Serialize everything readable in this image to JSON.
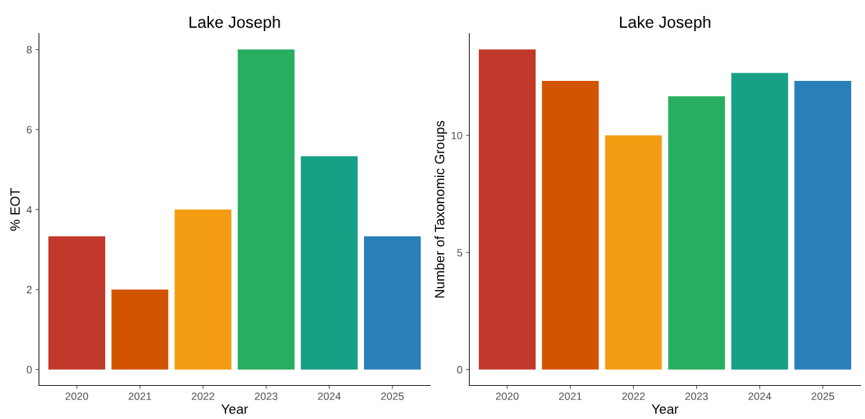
{
  "chart_data": [
    {
      "type": "bar",
      "title": "Lake Joseph",
      "xlabel": "Year",
      "ylabel": "% EOT",
      "categories": [
        "2020",
        "2021",
        "2022",
        "2023",
        "2024",
        "2025"
      ],
      "values": [
        3.33,
        2.0,
        4.0,
        8.0,
        5.33,
        3.33
      ],
      "colors": [
        "#c0392b",
        "#d35400",
        "#f39c12",
        "#27ae60",
        "#16a085",
        "#2980b9"
      ],
      "ylim": [
        -0.4,
        8.4
      ],
      "yticks": [
        0,
        2,
        4,
        6,
        8
      ],
      "grid": false,
      "legend": false
    },
    {
      "type": "bar",
      "title": "Lake Joseph",
      "xlabel": "Year",
      "ylabel": "Number of Taxonomic Groups",
      "categories": [
        "2020",
        "2021",
        "2022",
        "2023",
        "2024",
        "2025"
      ],
      "values": [
        13.67,
        12.33,
        10.0,
        11.67,
        12.67,
        12.33
      ],
      "colors": [
        "#c0392b",
        "#d35400",
        "#f39c12",
        "#27ae60",
        "#16a085",
        "#2980b9"
      ],
      "ylim": [
        -0.68,
        14.35
      ],
      "yticks": [
        0,
        5,
        10
      ],
      "grid": false,
      "legend": false
    }
  ]
}
